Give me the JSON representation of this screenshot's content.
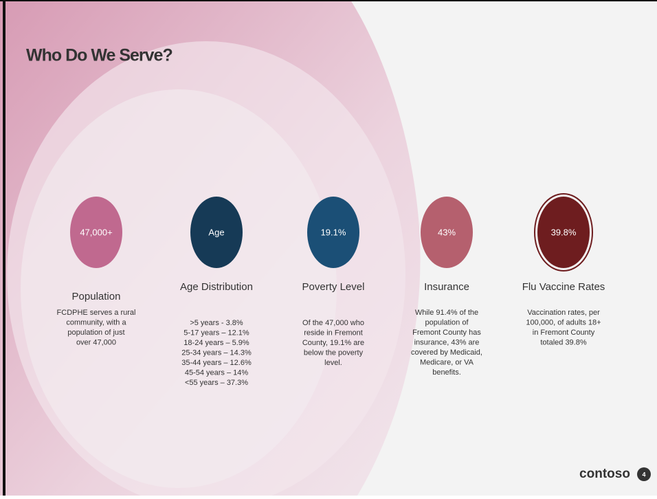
{
  "header": {
    "title": "Who Do We Serve?"
  },
  "items": [
    {
      "circle": "47,000+",
      "heading": "Population",
      "color": "#c0698f",
      "body": [
        "FCDPHE serves a rural",
        "community, with a",
        "population of just",
        "over 47,000"
      ]
    },
    {
      "circle": "Age",
      "heading": "Age Distribution",
      "color": "#163a56",
      "body": [
        ">5 years - 3.8%",
        "5-17 years – 12.1%",
        "18-24 years – 5.9%",
        "25-34 years – 14.3%",
        "35-44 years – 12.6%",
        "45-54 years – 14%",
        "<55 years – 37.3%"
      ]
    },
    {
      "circle": "19.1%",
      "heading": "Poverty Level",
      "color": "#1b4f76",
      "body": [
        "Of the 47,000 who",
        "reside in Fremont",
        "County, 19.1% are",
        "below the poverty",
        "level."
      ]
    },
    {
      "circle": "43%",
      "heading": "Insurance",
      "color": "#b5606e",
      "body": [
        "While 91.4% of the",
        "population of",
        "Fremont County has",
        "insurance, 43% are",
        "covered by Medicaid,",
        "Medicare, or VA",
        "benefits."
      ]
    },
    {
      "circle": "39.8%",
      "heading": "Flu Vaccine Rates",
      "color": "#6e1d1f",
      "body": [
        "Vaccination rates, per",
        "100,000, of adults 18+",
        "in Fremont County",
        "totaled 39.8%"
      ]
    }
  ],
  "footer": {
    "logo": "contoso",
    "page_number": "4"
  }
}
